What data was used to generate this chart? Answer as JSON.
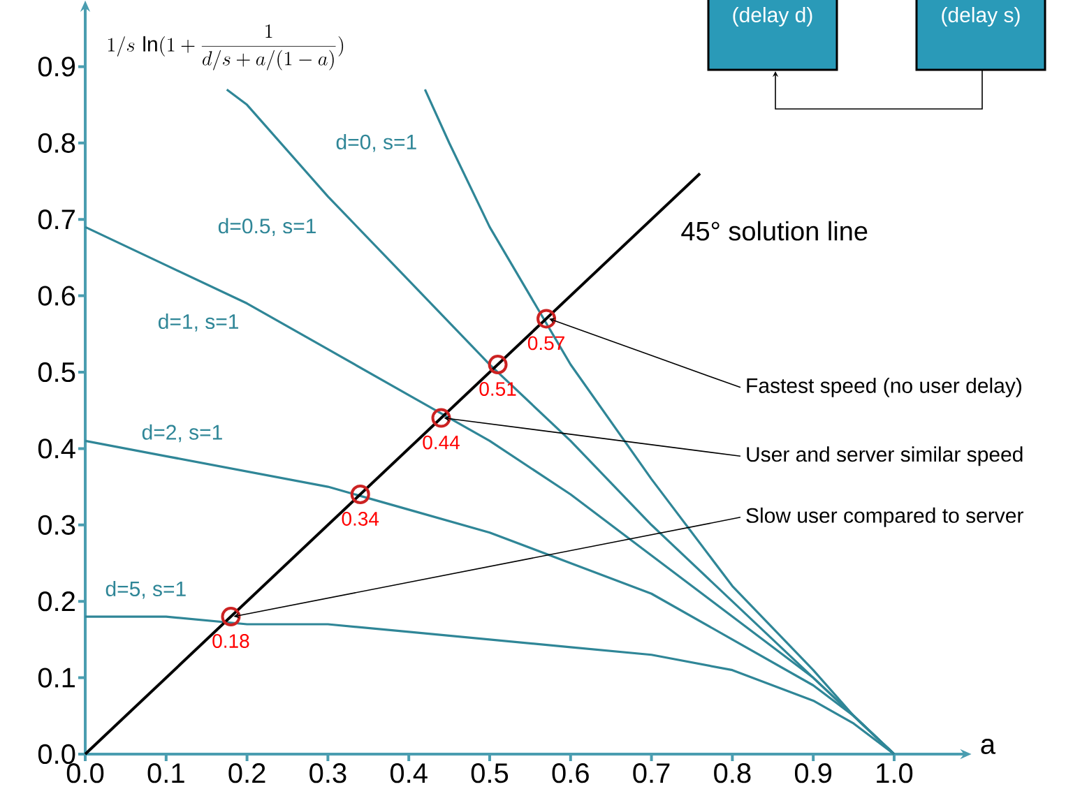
{
  "chart_data": {
    "type": "line",
    "xlabel": "a",
    "ylabel": "1/s\\,\\ln(1 + \\frac{1}{d/s + a/(1-a)})",
    "xlim": [
      0,
      1.08
    ],
    "ylim": [
      0,
      0.97
    ],
    "xticks": [
      {
        "value": 0,
        "label": "0.0"
      },
      {
        "value": 0.1,
        "label": "0.1"
      },
      {
        "value": 0.2,
        "label": "0.2"
      },
      {
        "value": 0.3,
        "label": "0.3"
      },
      {
        "value": 0.4,
        "label": "0.4"
      },
      {
        "value": 0.5,
        "label": "0.5"
      },
      {
        "value": 0.6,
        "label": "0.6"
      },
      {
        "value": 0.7,
        "label": "0.7"
      },
      {
        "value": 0.8,
        "label": "0.8"
      },
      {
        "value": 0.9,
        "label": "0.9"
      },
      {
        "value": 1.0,
        "label": "1.0"
      }
    ],
    "yticks": [
      {
        "value": 0,
        "label": "0.0"
      },
      {
        "value": 0.1,
        "label": "0.1"
      },
      {
        "value": 0.2,
        "label": "0.2"
      },
      {
        "value": 0.3,
        "label": "0.3"
      },
      {
        "value": 0.4,
        "label": "0.4"
      },
      {
        "value": 0.5,
        "label": "0.5"
      },
      {
        "value": 0.6,
        "label": "0.6"
      },
      {
        "value": 0.7,
        "label": "0.7"
      },
      {
        "value": 0.8,
        "label": "0.8"
      },
      {
        "value": 0.9,
        "label": "0.9"
      }
    ],
    "grid": false,
    "series": [
      {
        "name": "d=0, s=1",
        "color": "#2f8697",
        "x": [
          0.42,
          0.45,
          0.5,
          0.6,
          0.7,
          0.8,
          0.9,
          0.95,
          1.0
        ],
        "values": [
          0.87,
          0.8,
          0.69,
          0.51,
          0.36,
          0.22,
          0.11,
          0.05,
          0
        ]
      },
      {
        "name": "d=0.5, s=1",
        "color": "#2f8697",
        "x": [
          0.175,
          0.2,
          0.3,
          0.4,
          0.5,
          0.6,
          0.7,
          0.8,
          0.9,
          0.95,
          1.0
        ],
        "values": [
          0.87,
          0.85,
          0.73,
          0.62,
          0.51,
          0.41,
          0.3,
          0.2,
          0.1,
          0.05,
          0
        ]
      },
      {
        "name": "d=1, s=1",
        "color": "#2f8697",
        "x": [
          0,
          0.1,
          0.2,
          0.3,
          0.4,
          0.5,
          0.6,
          0.7,
          0.8,
          0.9,
          0.95,
          1.0
        ],
        "values": [
          0.69,
          0.64,
          0.59,
          0.53,
          0.47,
          0.41,
          0.34,
          0.26,
          0.18,
          0.1,
          0.05,
          0
        ]
      },
      {
        "name": "d=2, s=1",
        "color": "#2f8697",
        "x": [
          0,
          0.1,
          0.2,
          0.3,
          0.4,
          0.5,
          0.6,
          0.7,
          0.8,
          0.9,
          0.95,
          1.0
        ],
        "values": [
          0.41,
          0.39,
          0.37,
          0.35,
          0.32,
          0.29,
          0.25,
          0.21,
          0.15,
          0.09,
          0.05,
          0
        ]
      },
      {
        "name": "d=5, s=1",
        "color": "#2f8697",
        "x": [
          0,
          0.1,
          0.2,
          0.3,
          0.4,
          0.5,
          0.6,
          0.7,
          0.8,
          0.9,
          0.95,
          1.0
        ],
        "values": [
          0.18,
          0.18,
          0.17,
          0.17,
          0.16,
          0.15,
          0.14,
          0.13,
          0.11,
          0.07,
          0.04,
          0
        ]
      },
      {
        "name": "45° solution line",
        "color": "#000000",
        "x": [
          0,
          0.76
        ],
        "values": [
          0,
          0.76
        ]
      },
      {
        "type": "scatter",
        "marker": "circle",
        "color": "#cc2222",
        "x": [
          0.18,
          0.34,
          0.44,
          0.51,
          0.57
        ],
        "values": [
          0.18,
          0.34,
          0.44,
          0.51,
          0.57
        ],
        "value_labels": [
          "0.18",
          "0.34",
          "0.44",
          "0.51",
          "0.57"
        ]
      }
    ],
    "annotations": [
      {
        "text": "Fastest speed (no user delay)",
        "x": 0.57,
        "y": 0.57
      },
      {
        "text": "User and server similar speed",
        "x": 0.44,
        "y": 0.44
      },
      {
        "text": "Slow user compared to server",
        "x": 0.18,
        "y": 0.18
      },
      "(delay d)",
      "(delay s)"
    ]
  }
}
